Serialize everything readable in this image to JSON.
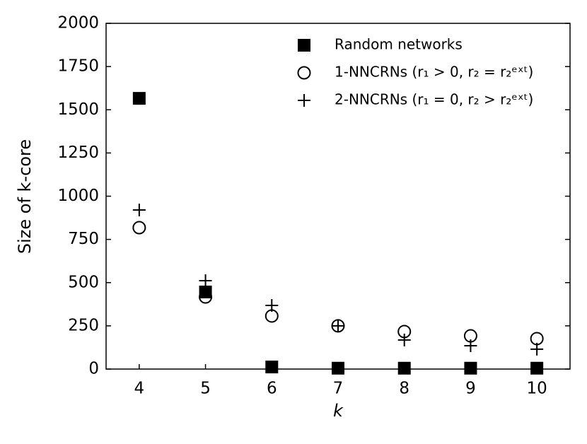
{
  "chart_data": {
    "type": "scatter",
    "xlabel": "k",
    "ylabel": "Size of k-core",
    "x": [
      4,
      5,
      6,
      7,
      8,
      9,
      10
    ],
    "xlim": [
      3.5,
      10.5
    ],
    "xticks": [
      4,
      5,
      6,
      7,
      8,
      9,
      10
    ],
    "ylim": [
      0,
      2000
    ],
    "yticks": [
      0,
      250,
      500,
      750,
      1000,
      1250,
      1500,
      1750,
      2000
    ],
    "legend": "upper right",
    "series": [
      {
        "name": "Random networks",
        "color": "#000000",
        "marker": "square",
        "values": [
          1566,
          446,
          12,
          5,
          5,
          5,
          5
        ]
      },
      {
        "name": "1-NNCRNs (r₁ > 0, r₂ = r₂ᵉˣᵗ)",
        "color": "#000000",
        "marker": "circle",
        "values": [
          818,
          417,
          307,
          250,
          217,
          192,
          176
        ]
      },
      {
        "name": "2-NNCRNs (r₁ = 0, r₂ > r₂ᵉˣᵗ)",
        "color": "#000000",
        "marker": "plus",
        "values": [
          920,
          511,
          368,
          250,
          168,
          135,
          115
        ]
      }
    ]
  }
}
